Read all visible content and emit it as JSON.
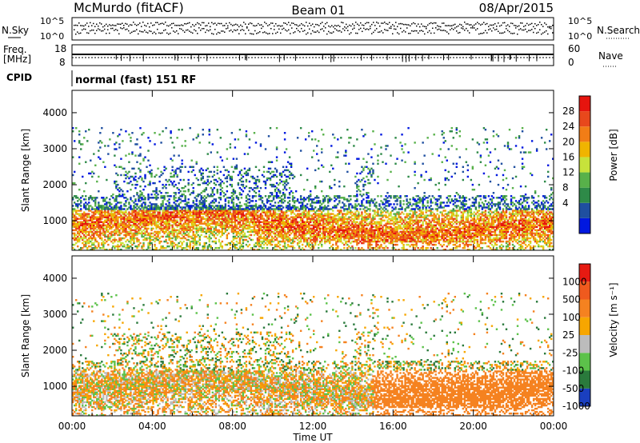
{
  "header": {
    "station": "McMurdo (fitACF)",
    "beam": "Beam 01",
    "date": "08/Apr/2015"
  },
  "params_panel": {
    "left_top_label": "N.Sky",
    "left_top_ticks": [
      "10^5",
      "10^0"
    ],
    "right_top_label": "N.Search",
    "right_top_ticks": [
      "10^5",
      "10^0"
    ],
    "left_mid_label_1": "Freq.",
    "left_mid_label_2": "[MHz]",
    "left_mid_ticks": [
      "18",
      "8"
    ],
    "right_mid_label": "Nave",
    "right_mid_ticks": [
      "60",
      "0"
    ],
    "cpid_label": "CPID",
    "cpid_text": "normal (fast) 151 RF"
  },
  "chart_data": [
    {
      "type": "heatmap",
      "panel": "power",
      "ylabel": "Slant Range [km]",
      "yticks": [
        1000,
        2000,
        3000,
        4000
      ],
      "ylim": [
        180,
        4620
      ],
      "xlim_hours": [
        0,
        24
      ],
      "colorbar_label": "Power [dB]",
      "colorbar_ticks": [
        "28",
        "24",
        "20",
        "16",
        "12",
        "8",
        "4"
      ],
      "colors": [
        "#0018e0",
        "#1f4fa0",
        "#2e8a48",
        "#58b14a",
        "#c7e23b",
        "#f0b400",
        "#f27d16",
        "#e8481c",
        "#e6140e"
      ]
    },
    {
      "type": "heatmap",
      "panel": "velocity",
      "ylabel": "Slant Range [km]",
      "yticks": [
        1000,
        2000,
        3000,
        4000
      ],
      "ylim": [
        180,
        4620
      ],
      "xlim_hours": [
        0,
        24
      ],
      "colorbar_label": "Velocity [m s⁻¹]",
      "colorbar_ticks": [
        "1000",
        "500",
        "100",
        "25",
        "-25",
        "-100",
        "-500",
        "-1000"
      ],
      "colors": [
        "#1a3fbf",
        "#2a7a3c",
        "#5cc24a",
        "#bcbcbc",
        "#f7a600",
        "#f58220",
        "#ef5a1e",
        "#e61a12"
      ]
    }
  ],
  "xaxis": {
    "label": "Time UT",
    "ticks": [
      "00:00",
      "04:00",
      "08:00",
      "12:00",
      "16:00",
      "20:00",
      "00:00"
    ]
  }
}
